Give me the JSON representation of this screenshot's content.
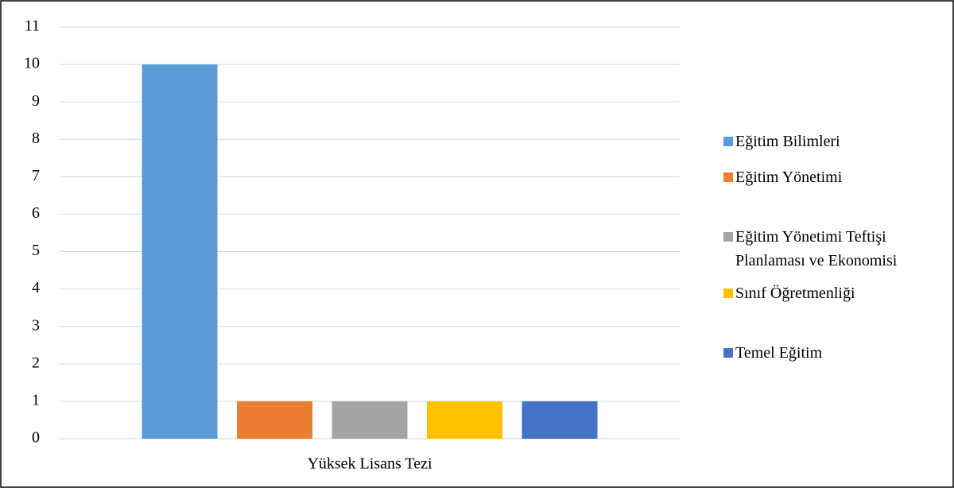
{
  "chart_data": {
    "type": "bar",
    "categories": [
      "Yüksek Lisans Tezi"
    ],
    "series": [
      {
        "name": "Eğitim Bilimleri",
        "color": "#5b9bd5",
        "values": [
          10
        ]
      },
      {
        "name": "Eğitim Yönetimi",
        "color": "#ed7d31",
        "values": [
          1
        ]
      },
      {
        "name": "Eğitim Yönetimi Teftişi Planlaması ve Ekonomisi",
        "color": "#a5a5a5",
        "values": [
          1
        ]
      },
      {
        "name": "Sınıf Öğretmenliği",
        "color": "#ffc000",
        "values": [
          1
        ]
      },
      {
        "name": "Temel Eğitim",
        "color": "#4472c4",
        "values": [
          1
        ]
      }
    ],
    "ylim": [
      0,
      11
    ],
    "yticks": [
      0,
      1,
      2,
      3,
      4,
      5,
      6,
      7,
      8,
      9,
      10,
      11
    ],
    "grid": true,
    "legend": "right"
  }
}
